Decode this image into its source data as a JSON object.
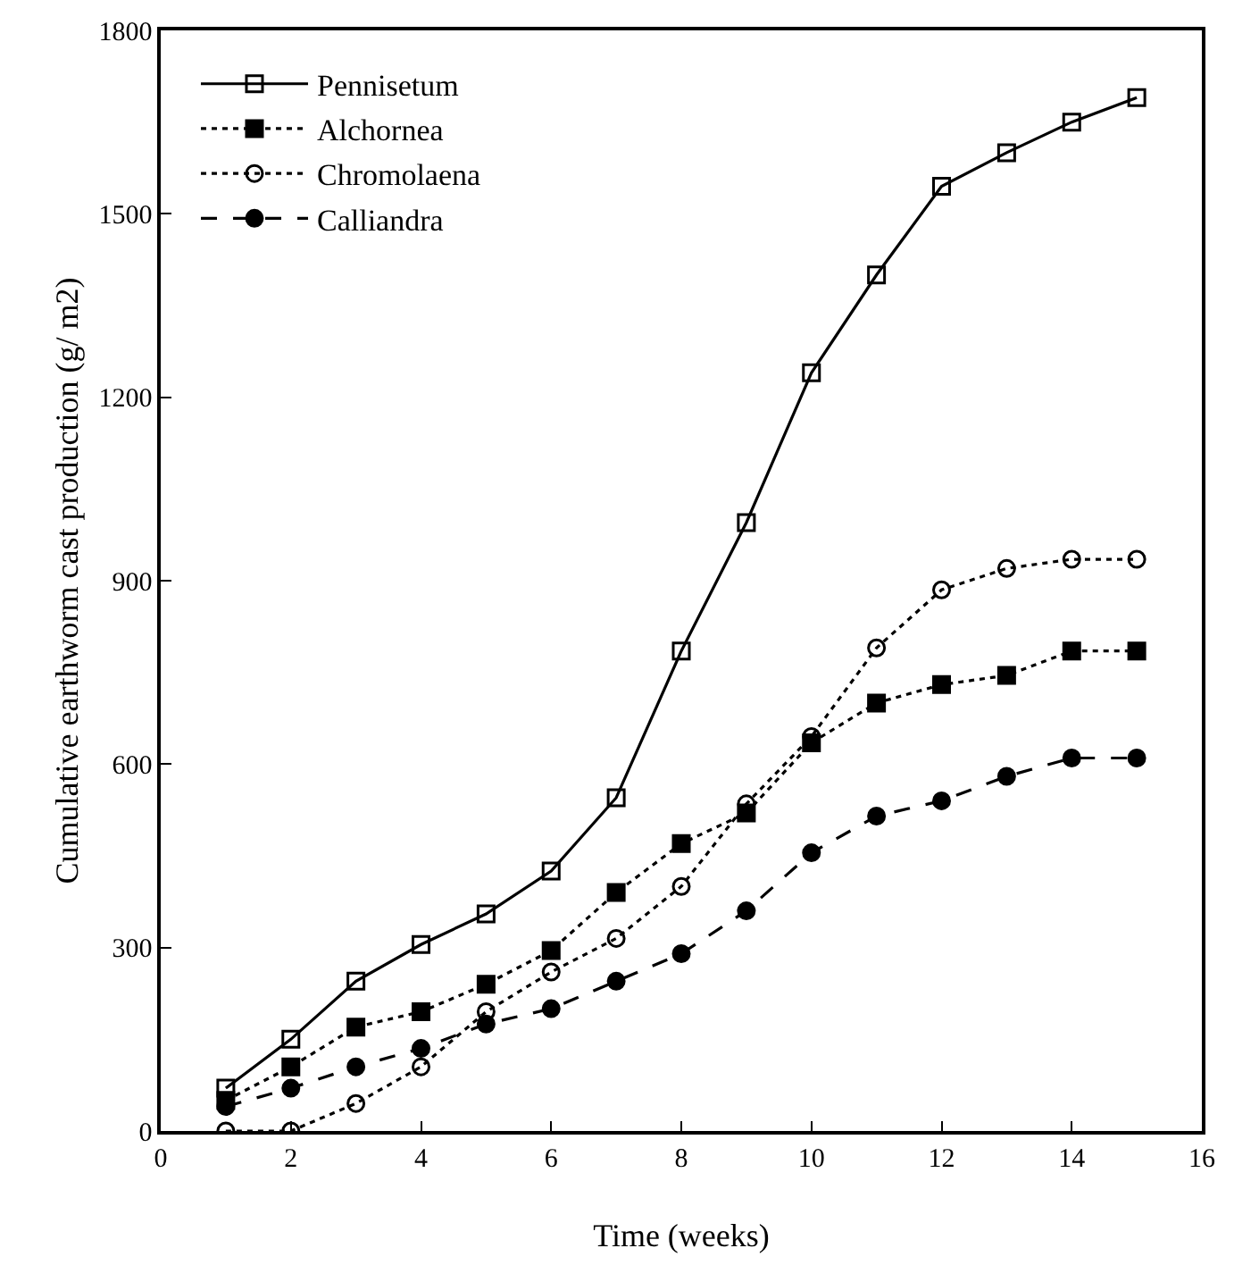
{
  "chart_data": {
    "type": "line",
    "xlabel": "Time (weeks)",
    "ylabel": "Cumulative earthworm cast production (g/ m2)",
    "x": [
      1,
      2,
      3,
      4,
      5,
      6,
      7,
      8,
      9,
      10,
      11,
      12,
      13,
      14,
      15
    ],
    "xlim": [
      0,
      16
    ],
    "xticks": [
      0,
      2,
      4,
      6,
      8,
      10,
      12,
      14,
      16
    ],
    "ylim": [
      0,
      1800
    ],
    "yticks": [
      0,
      300,
      600,
      900,
      1200,
      1500,
      1800
    ],
    "grid": false,
    "legend": "top left",
    "series": [
      {
        "name": "Pennisetum",
        "color": "#000000",
        "marker": "square-open",
        "line_style": "solid",
        "values": [
          70,
          150,
          245,
          305,
          355,
          425,
          545,
          785,
          995,
          1240,
          1400,
          1545,
          1600,
          1650,
          1690
        ]
      },
      {
        "name": "Alchornea",
        "color": "#000000",
        "marker": "square",
        "line_style": "dotted",
        "values": [
          50,
          105,
          170,
          195,
          240,
          295,
          390,
          470,
          520,
          635,
          700,
          730,
          745,
          785,
          785
        ]
      },
      {
        "name": "Chromolaena",
        "color": "#000000",
        "marker": "circle-open",
        "line_style": "dotted",
        "values": [
          0,
          0,
          45,
          105,
          195,
          260,
          315,
          400,
          535,
          645,
          790,
          885,
          920,
          935,
          935
        ]
      },
      {
        "name": "Calliandra",
        "color": "#000000",
        "marker": "circle",
        "line_style": "dashed",
        "values": [
          40,
          70,
          105,
          135,
          175,
          200,
          245,
          290,
          360,
          455,
          515,
          540,
          580,
          610,
          610
        ]
      }
    ]
  }
}
